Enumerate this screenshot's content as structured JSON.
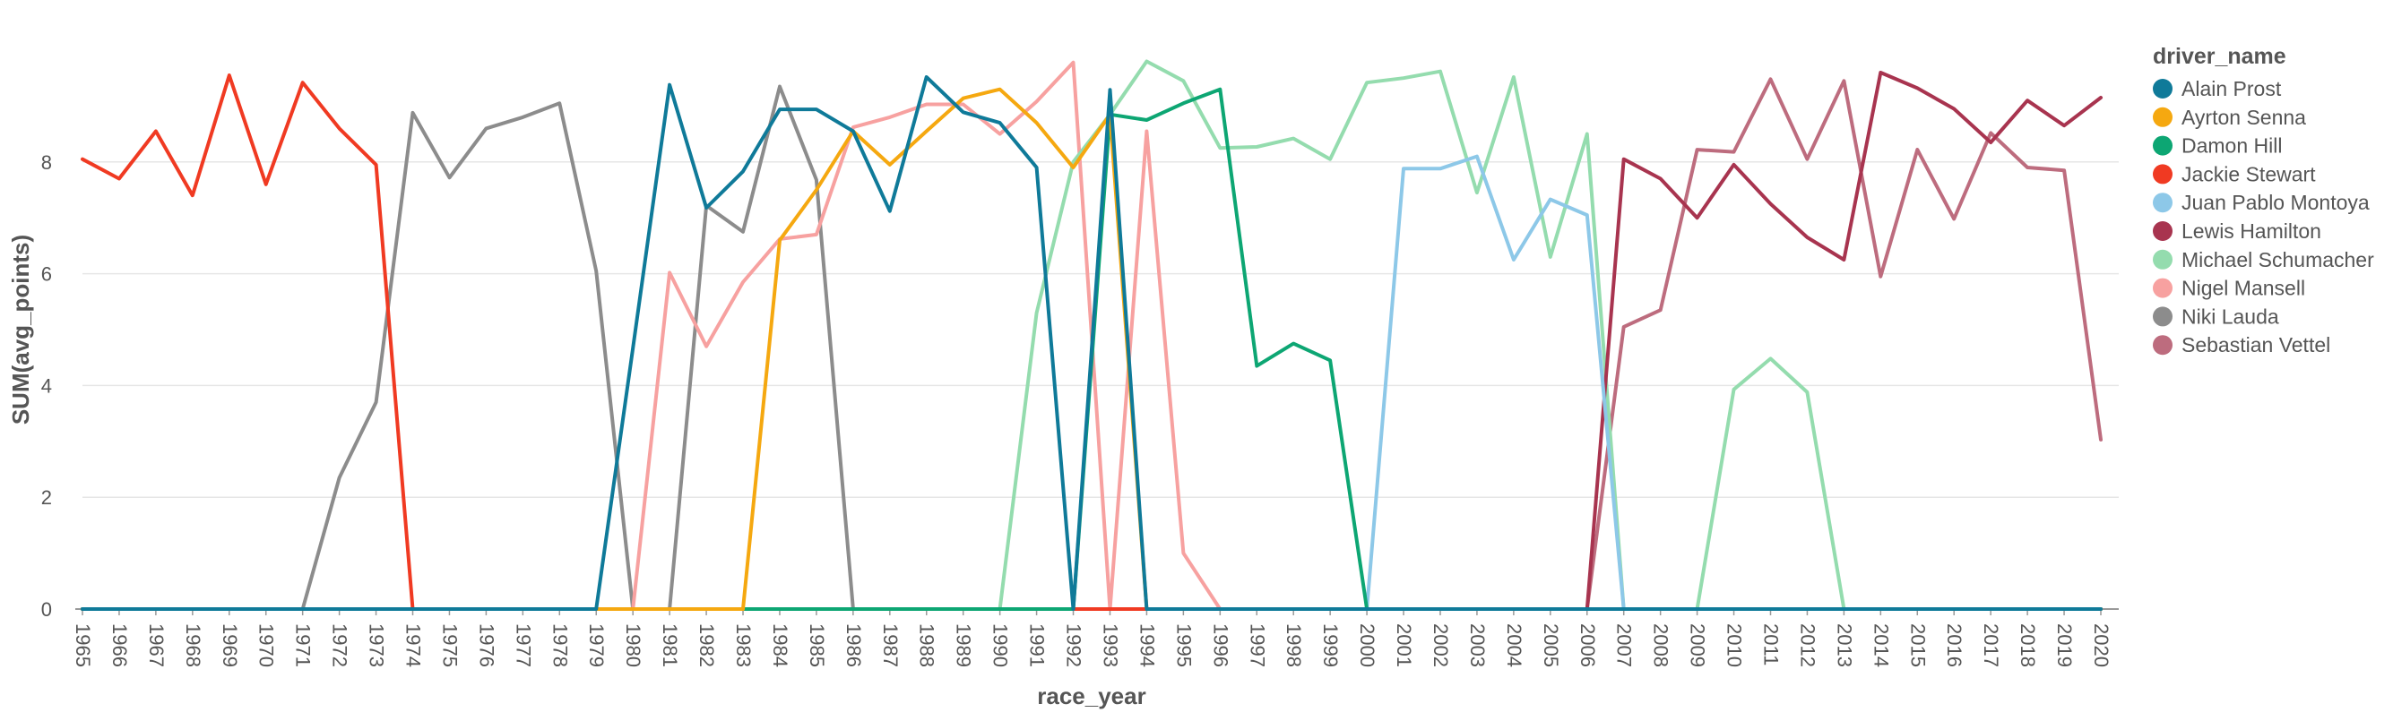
{
  "chart_data": {
    "type": "line",
    "xlabel": "race_year",
    "ylabel": "SUM(avg_points)",
    "ylim": [
      0,
      10
    ],
    "yticks": [
      0,
      2,
      4,
      6,
      8
    ],
    "grid": true,
    "legend_title": "driver_name",
    "legend_placement": "right",
    "x": [
      1965,
      1966,
      1967,
      1968,
      1969,
      1970,
      1971,
      1972,
      1973,
      1974,
      1975,
      1976,
      1977,
      1978,
      1979,
      1980,
      1981,
      1982,
      1983,
      1984,
      1985,
      1986,
      1987,
      1988,
      1989,
      1990,
      1991,
      1992,
      1993,
      1994,
      1995,
      1996,
      1997,
      1998,
      1999,
      2000,
      2001,
      2002,
      2003,
      2004,
      2005,
      2006,
      2007,
      2008,
      2009,
      2010,
      2011,
      2012,
      2013,
      2014,
      2015,
      2016,
      2017,
      2018,
      2019,
      2020
    ],
    "series": [
      {
        "name": "Alain Prost",
        "color": "#0f7a99",
        "values": [
          0,
          0,
          0,
          0,
          0,
          0,
          0,
          0,
          0,
          0,
          0,
          0,
          0,
          0,
          0,
          4.67,
          9.38,
          7.18,
          7.83,
          8.94,
          8.94,
          8.55,
          7.12,
          9.52,
          8.89,
          8.7,
          7.9,
          0,
          9.29,
          0,
          0,
          0,
          0,
          0,
          0,
          0,
          0,
          0,
          0,
          0,
          0,
          0,
          0,
          0,
          0,
          0,
          0,
          0,
          0,
          0,
          0,
          0,
          0,
          0,
          0,
          0
        ]
      },
      {
        "name": "Ayrton Senna",
        "color": "#f5a810",
        "values": [
          0,
          0,
          0,
          0,
          0,
          0,
          0,
          0,
          0,
          0,
          0,
          0,
          0,
          0,
          0,
          0,
          0,
          0,
          0,
          6.6,
          7.5,
          8.55,
          7.95,
          8.55,
          9.14,
          9.3,
          8.7,
          7.9,
          8.85,
          0,
          0,
          0,
          0,
          0,
          0,
          0,
          0,
          0,
          0,
          0,
          0,
          0,
          0,
          0,
          0,
          0,
          0,
          0,
          0,
          0,
          0,
          0,
          0,
          0,
          0,
          0
        ]
      },
      {
        "name": "Damon Hill",
        "color": "#0da673",
        "values": [
          0,
          0,
          0,
          0,
          0,
          0,
          0,
          0,
          0,
          0,
          0,
          0,
          0,
          0,
          0,
          0,
          0,
          0,
          0,
          0,
          0,
          0,
          0,
          0,
          0,
          0,
          0,
          0,
          8.85,
          8.75,
          9.05,
          9.3,
          4.35,
          4.75,
          4.45,
          0,
          0,
          0,
          0,
          0,
          0,
          0,
          0,
          0,
          0,
          0,
          0,
          0,
          0,
          0,
          0,
          0,
          0,
          0,
          0,
          0
        ]
      },
      {
        "name": "Jackie Stewart",
        "color": "#f03a22",
        "values": [
          8.05,
          7.7,
          8.55,
          7.4,
          9.55,
          7.6,
          9.42,
          8.6,
          7.95,
          0,
          0,
          0,
          0,
          0,
          0,
          0,
          0,
          0,
          0,
          0,
          0,
          0,
          0,
          0,
          0,
          0,
          0,
          0,
          0,
          0,
          0,
          0,
          0,
          0,
          0,
          0,
          0,
          0,
          0,
          0,
          0,
          0,
          0,
          0,
          0,
          0,
          0,
          0,
          0,
          0,
          0,
          0,
          0,
          0,
          0,
          0
        ]
      },
      {
        "name": "Juan Pablo Montoya",
        "color": "#8dc8e8",
        "values": [
          0,
          0,
          0,
          0,
          0,
          0,
          0,
          0,
          0,
          0,
          0,
          0,
          0,
          0,
          0,
          0,
          0,
          0,
          0,
          0,
          0,
          0,
          0,
          0,
          0,
          0,
          0,
          0,
          0,
          0,
          0,
          0,
          0,
          0,
          0,
          0,
          7.88,
          7.88,
          8.1,
          6.25,
          7.33,
          7.05,
          0,
          0,
          0,
          0,
          0,
          0,
          0,
          0,
          0,
          0,
          0,
          0,
          0,
          0
        ]
      },
      {
        "name": "Lewis Hamilton",
        "color": "#a8344f",
        "values": [
          0,
          0,
          0,
          0,
          0,
          0,
          0,
          0,
          0,
          0,
          0,
          0,
          0,
          0,
          0,
          0,
          0,
          0,
          0,
          0,
          0,
          0,
          0,
          0,
          0,
          0,
          0,
          0,
          0,
          0,
          0,
          0,
          0,
          0,
          0,
          0,
          0,
          0,
          0,
          0,
          0,
          0,
          8.05,
          7.7,
          7.0,
          7.95,
          7.25,
          6.65,
          6.25,
          9.6,
          9.32,
          8.95,
          8.35,
          9.1,
          8.65,
          9.15
        ]
      },
      {
        "name": "Michael Schumacher",
        "color": "#94dcae",
        "values": [
          0,
          0,
          0,
          0,
          0,
          0,
          0,
          0,
          0,
          0,
          0,
          0,
          0,
          0,
          0,
          0,
          0,
          0,
          0,
          0,
          0,
          0,
          0,
          0,
          0,
          0,
          5.3,
          8.0,
          8.85,
          9.8,
          9.45,
          8.25,
          8.27,
          8.42,
          8.05,
          9.42,
          9.5,
          9.62,
          7.45,
          9.52,
          6.3,
          8.5,
          0,
          0,
          0,
          3.93,
          4.48,
          3.88,
          0,
          0,
          0,
          0,
          0,
          0,
          0,
          0
        ]
      },
      {
        "name": "Nigel Mansell",
        "color": "#f7a1a0",
        "values": [
          0,
          0,
          0,
          0,
          0,
          0,
          0,
          0,
          0,
          0,
          0,
          0,
          0,
          0,
          0,
          0,
          6.02,
          4.7,
          5.85,
          6.62,
          6.7,
          8.62,
          8.8,
          9.03,
          9.03,
          8.5,
          9.08,
          9.78,
          0,
          8.55,
          1.0,
          0,
          0,
          0,
          0,
          0,
          0,
          0,
          0,
          0,
          0,
          0,
          0,
          0,
          0,
          0,
          0,
          0,
          0,
          0,
          0,
          0,
          0,
          0,
          0,
          0
        ]
      },
      {
        "name": "Niki Lauda",
        "color": "#8c8c8c",
        "values": [
          0,
          0,
          0,
          0,
          0,
          0,
          0,
          2.35,
          3.7,
          8.88,
          7.72,
          8.6,
          8.8,
          9.05,
          6.05,
          0,
          0,
          7.22,
          6.75,
          9.35,
          7.68,
          0,
          0,
          0,
          0,
          0,
          0,
          0,
          0,
          0,
          0,
          0,
          0,
          0,
          0,
          0,
          0,
          0,
          0,
          0,
          0,
          0,
          0,
          0,
          0,
          0,
          0,
          0,
          0,
          0,
          0,
          0,
          0,
          0,
          0,
          0
        ]
      },
      {
        "name": "Sebastian Vettel",
        "color": "#bd6c7e",
        "values": [
          0,
          0,
          0,
          0,
          0,
          0,
          0,
          0,
          0,
          0,
          0,
          0,
          0,
          0,
          0,
          0,
          0,
          0,
          0,
          0,
          0,
          0,
          0,
          0,
          0,
          0,
          0,
          0,
          0,
          0,
          0,
          0,
          0,
          0,
          0,
          0,
          0,
          0,
          0,
          0,
          0,
          0,
          5.05,
          5.35,
          8.22,
          8.18,
          9.48,
          8.05,
          9.45,
          5.95,
          8.22,
          6.98,
          8.52,
          7.9,
          7.85,
          3.03
        ]
      }
    ]
  }
}
